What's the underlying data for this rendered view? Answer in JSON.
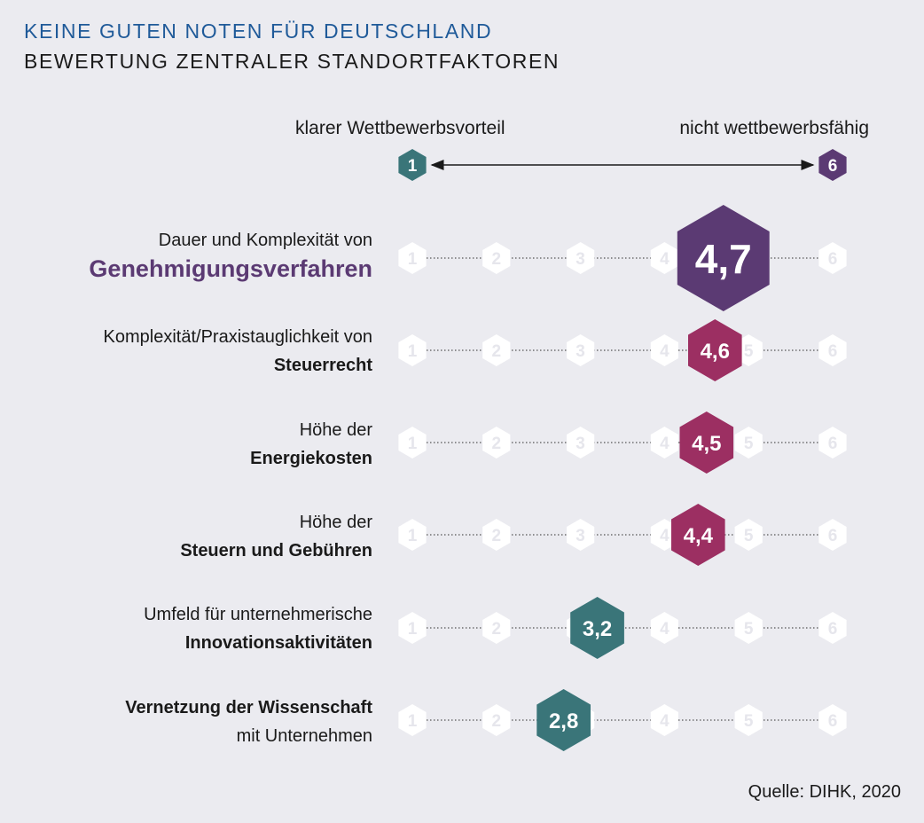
{
  "title": "KEINE GUTEN NOTEN FÜR DEUTSCHLAND",
  "subtitle": "BEWERTUNG ZENTRALER STANDORTFAKTOREN",
  "legend": {
    "left_label": "klarer Wettbewerbsvorteil",
    "right_label": "nicht wettbewerbsfähig",
    "left_value": "1",
    "right_value": "6"
  },
  "source": "Quelle: DIHK, 2020",
  "colors": {
    "background": "#ebebf0",
    "teal": "#3a7579",
    "magenta": "#9c2f62",
    "purple": "#5b3a73",
    "title_blue": "#1f5a99",
    "scale_hexagon": "#ffffff"
  },
  "scale_ticks": [
    "1",
    "2",
    "3",
    "4",
    "5",
    "6"
  ],
  "rows": [
    {
      "line1": "Dauer und Komplexität von",
      "line2": "Genehmigungsverfahren",
      "style": "highlight"
    },
    {
      "line1": "Komplexität/Praxistauglichkeit von",
      "line2": "Steuerrecht",
      "style": "bold2"
    },
    {
      "line1": "Höhe der",
      "line2": "Energiekosten",
      "style": "bold2"
    },
    {
      "line1": "Höhe der",
      "line2": "Steuern und Gebühren",
      "style": "bold2"
    },
    {
      "line1": "Umfeld für unternehmerische",
      "line2": "Innovationsaktivitäten",
      "style": "bold2"
    },
    {
      "line1": "Vernetzung der Wissenschaft",
      "line2": "mit Unternehmen",
      "style": "bold1"
    }
  ],
  "chart_data": {
    "type": "scatter",
    "title": "KEINE GUTEN NOTEN FÜR DEUTSCHLAND",
    "subtitle": "BEWERTUNG ZENTRALER STANDORTFAKTOREN",
    "xlim": [
      1,
      6
    ],
    "categories": [
      "Dauer und Komplexität von Genehmigungsverfahren",
      "Komplexität/Praxistauglichkeit von Steuerrecht",
      "Höhe der Energiekosten",
      "Höhe der Steuern und Gebühren",
      "Umfeld für unternehmerische Innovationsaktivitäten",
      "Vernetzung der Wissenschaft mit Unternehmen"
    ],
    "values": [
      4.7,
      4.6,
      4.5,
      4.4,
      3.2,
      2.8
    ],
    "value_labels": [
      "4,7",
      "4,6",
      "4,5",
      "4,4",
      "3,2",
      "2,8"
    ],
    "marker_colors": [
      "#5b3a73",
      "#9c2f62",
      "#9c2f62",
      "#9c2f62",
      "#3a7579",
      "#3a7579"
    ],
    "grid": false
  }
}
